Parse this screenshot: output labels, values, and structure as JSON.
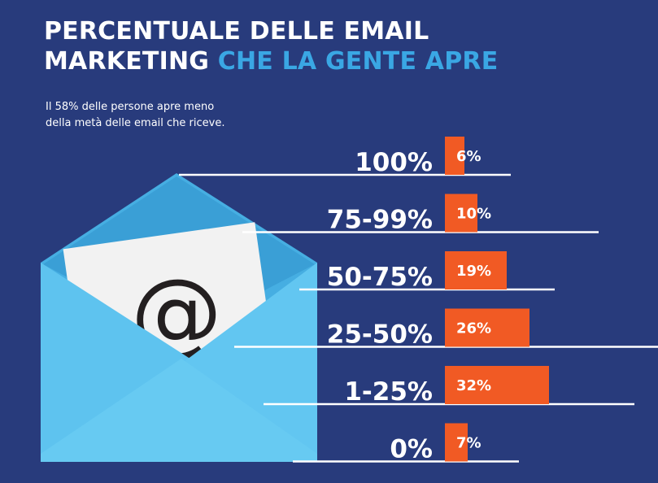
{
  "title": {
    "line1": "PERCENTUALE DELLE EMAIL",
    "line2_white": "MARKETING",
    "line2_accent": "CHE LA GENTE APRE"
  },
  "subtitle": {
    "line1": "Il 58% delle persone apre meno",
    "line2": "della metà delle email che riceve."
  },
  "colors": {
    "background": "#283b7c",
    "accent": "#3aa7e4",
    "bar": "#f15a24",
    "envelope": "#5cc2ee",
    "text": "#ffffff"
  },
  "envelope": {
    "symbol": "@",
    "icon": "envelope-icon"
  },
  "chart_data": {
    "type": "bar",
    "orientation": "horizontal",
    "categories": [
      "100%",
      "75-99%",
      "50-75%",
      "25-50%",
      "1-25%",
      "0%"
    ],
    "values": [
      6,
      10,
      19,
      26,
      32,
      7
    ],
    "value_labels": [
      "6%",
      "10%",
      "19%",
      "26%",
      "32%",
      "7%"
    ],
    "unit": "%"
  }
}
